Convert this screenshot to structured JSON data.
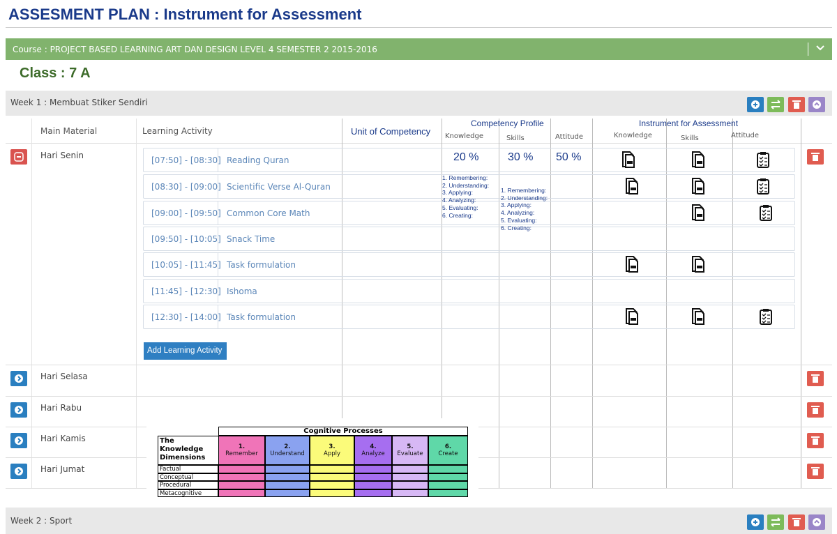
{
  "header": {
    "title": "ASSESMENT  PLAN :  Instrument for Assessment"
  },
  "course": "Course : PROJECT BASED LEARNING ART DAN DESIGN LEVEL 4 SEMESTER 2 2015-2016",
  "class": "Class : 7 A",
  "week1": {
    "title": "Week 1 : Membuat Stiker Sendiri"
  },
  "columns": {
    "main_material": "Main Material",
    "learning_activity": "Learning Activity",
    "unit": "Unit of Competency",
    "competency_profile": "Competency Profile",
    "cp_sub": [
      "Knowledge",
      "Skills",
      "Attitude"
    ],
    "instrument": "Instrument for Assessment",
    "ia_sub": [
      "Knowledge",
      "Skills",
      "Attitude"
    ]
  },
  "percentages": [
    "20 %",
    "30 %",
    "50 %"
  ],
  "knowledge_levels": [
    "1. Remembering:",
    "2. Understanding:",
    "3. Applying:",
    "4. Analyzing:",
    "5. Evaluating:",
    "6. Creating:"
  ],
  "skills_levels": [
    "1. Remembering:",
    "2. Understanding:",
    "3. Applying:",
    "4. Analyzing:",
    "5. Evaluating:",
    "6. Creating:"
  ],
  "days": [
    {
      "name": "Hari Senin",
      "activities": [
        {
          "time": "[07:50] - [08:30]",
          "name": "Reading Quran"
        },
        {
          "time": "[08:30] - [09:00]",
          "name": "Scientific Verse Al-Quran"
        },
        {
          "time": "[09:00] - [09:50]",
          "name": "Common Core Math"
        },
        {
          "time": "[09:50] - [10:05]",
          "name": "Snack Time"
        },
        {
          "time": "[10:05] - [11:45]",
          "name": "Task formulation"
        },
        {
          "time": "[11:45] - [12:30]",
          "name": "Ishoma"
        },
        {
          "time": "[12:30] - [14:00]",
          "name": "Task formulation"
        }
      ]
    },
    {
      "name": "Hari Selasa"
    },
    {
      "name": "Hari Rabu"
    },
    {
      "name": "Hari Kamis"
    },
    {
      "name": "Hari Jumat"
    }
  ],
  "add_button": "Add Learning Activity",
  "taxonomy": {
    "title": "Cognitive Processes",
    "dimension_label": "The Knowledge Dimensions",
    "processes": [
      {
        "num": "1.",
        "name": "Remember"
      },
      {
        "num": "2.",
        "name": "Understand"
      },
      {
        "num": "3.",
        "name": "Apply"
      },
      {
        "num": "4.",
        "name": "Analyze"
      },
      {
        "num": "5.",
        "name": "Evaluate"
      },
      {
        "num": "6.",
        "name": "Create"
      }
    ],
    "dimensions": [
      "Factual",
      "Conceptual",
      "Procedural",
      "Metacognitive"
    ]
  },
  "week2": {
    "title": "Week 2 : Sport"
  }
}
